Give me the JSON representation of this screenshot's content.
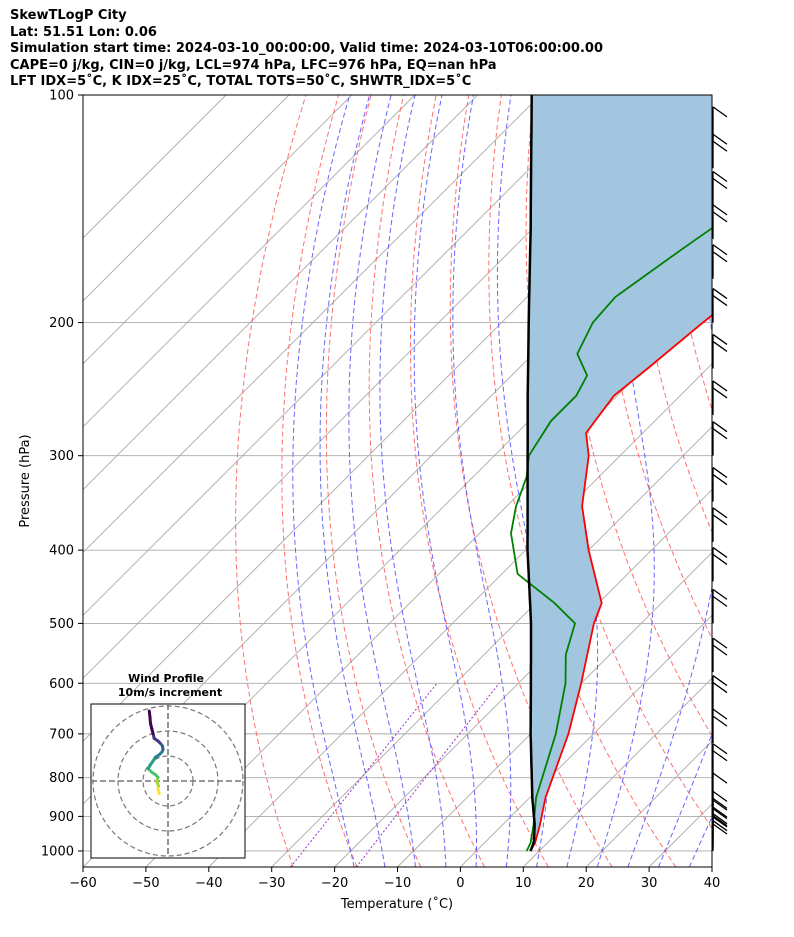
{
  "header": {
    "line1": "SkewTLogP City",
    "line2": "Lat: 51.51   Lon: 0.06",
    "line3": "Simulation start time: 2024-03-10_00:00:00, Valid time: 2024-03-10T06:00:00.00",
    "line4": "CAPE=0 j/kg, CIN=0 j/kg, LCL=974 hPa, LFC=976 hPa, EQ=nan hPa",
    "line5": "LFT IDX=5˚C, K IDX=25˚C, TOTAL TOTS=50˚C, SHWTR_IDX=5˚C"
  },
  "colors": {
    "temperature": "#ff0000",
    "dewpoint": "#008000",
    "parcel": "#000000",
    "shade": "#a3c6e0",
    "dry_adiabat": "#ff6060",
    "moist_adiabat": "#4b4bff",
    "mixing_ratio": "#9a32cd",
    "isotherm": "#aaaaaa"
  },
  "chart_data": {
    "type": "line",
    "xlabel": "Temperature (˚C)",
    "ylabel": "Pressure (hPa)",
    "xlim": [
      -60,
      40
    ],
    "ylim": [
      1050,
      100
    ],
    "y_scale": "log",
    "skew": true,
    "x_ticks": [
      "−60",
      "−50",
      "−40",
      "−30",
      "−20",
      "−10",
      "0",
      "10",
      "20",
      "30",
      "40"
    ],
    "y_ticks": [
      "100",
      "200",
      "300",
      "400",
      "500",
      "600",
      "700",
      "800",
      "900",
      "1000"
    ],
    "series": [
      {
        "key": "temperature",
        "pressure": [
          1000,
          975,
          925,
          850,
          700,
          600,
          500,
          470,
          400,
          350,
          300,
          280,
          250,
          230,
          200,
          185,
          165,
          150,
          130,
          115,
          100
        ],
        "values": [
          8.6,
          8.0,
          6.0,
          2.5,
          -4.0,
          -10.0,
          -17.5,
          -19.5,
          -30.0,
          -38.0,
          -45.0,
          -49.0,
          -50.5,
          -49.5,
          -48.0,
          -47.0,
          -46.5,
          -46.0,
          -45.0,
          -44.5,
          -44.0
        ]
      },
      {
        "key": "dewpoint",
        "pressure": [
          1000,
          975,
          925,
          850,
          700,
          600,
          550,
          500,
          470,
          430,
          380,
          350,
          320,
          300,
          270,
          250,
          235,
          220,
          200,
          185,
          160,
          140,
          120,
          100
        ],
        "values": [
          8.0,
          7.3,
          5.0,
          1.0,
          -6.0,
          -12.5,
          -17.0,
          -20.5,
          -27.0,
          -37.5,
          -45.0,
          -48.5,
          -51.5,
          -54.5,
          -56.5,
          -56.5,
          -58.0,
          -63.0,
          -65.5,
          -66.0,
          -63.0,
          -60.0,
          -57.0,
          -54.0
        ]
      },
      {
        "key": "parcel",
        "pressure": [
          1000,
          975,
          925,
          850,
          700,
          600,
          500,
          400,
          300,
          250,
          200,
          150,
          100
        ],
        "values": [
          8.6,
          7.8,
          5.2,
          0.4,
          -10.0,
          -18.0,
          -27.5,
          -39.7,
          -54.7,
          -64.2,
          -75.7,
          -90.4,
          -111.4
        ]
      }
    ],
    "wind_barbs": [
      {
        "p": 1000,
        "flags": [
          1,
          1
        ]
      },
      {
        "p": 990,
        "flags": [
          1,
          1
        ]
      },
      {
        "p": 975,
        "flags": [
          1,
          1
        ]
      },
      {
        "p": 950,
        "flags": [
          1,
          1
        ]
      },
      {
        "p": 925,
        "flags": [
          1,
          1
        ]
      },
      {
        "p": 875,
        "flags": [
          1
        ]
      },
      {
        "p": 800,
        "flags": [
          1,
          1
        ]
      },
      {
        "p": 720,
        "flags": [
          1,
          1
        ]
      },
      {
        "p": 650,
        "flags": [
          1,
          1
        ]
      },
      {
        "p": 580,
        "flags": [
          1,
          1
        ]
      },
      {
        "p": 500,
        "flags": [
          1,
          1
        ]
      },
      {
        "p": 440,
        "flags": [
          1,
          1
        ]
      },
      {
        "p": 390,
        "flags": [
          1,
          1
        ]
      },
      {
        "p": 345,
        "flags": [
          1,
          1
        ]
      },
      {
        "p": 300,
        "flags": [
          1,
          1
        ]
      },
      {
        "p": 265,
        "flags": [
          1,
          1
        ]
      },
      {
        "p": 230,
        "flags": [
          1,
          1
        ]
      },
      {
        "p": 200,
        "flags": [
          1,
          1
        ]
      },
      {
        "p": 175,
        "flags": [
          1,
          1
        ]
      },
      {
        "p": 155,
        "flags": [
          1,
          1
        ]
      },
      {
        "p": 140,
        "flags": [
          1,
          1
        ]
      },
      {
        "p": 125,
        "flags": [
          1,
          1
        ]
      },
      {
        "p": 115,
        "flags": [
          1
        ]
      }
    ],
    "inset": {
      "title_line1": "Wind Profile",
      "title_line2": "10m/s increment",
      "hodograph_u": [
        -3.5,
        -3.8,
        -4.0,
        -3.8,
        -4.2,
        -4.5,
        -4.0,
        -5.0,
        -6.5,
        -8.0,
        -7.0,
        -6.0,
        -5.0,
        -3.5,
        -2.5,
        -2.0,
        -2.2,
        -3.0,
        -3.5,
        -4.0,
        -5.5,
        -6.0,
        -6.5,
        -7.0,
        -7.2,
        -7.5
      ],
      "hodograph_v": [
        -5.0,
        -4.0,
        -3.0,
        -2.0,
        -1.0,
        0.0,
        1.5,
        2.5,
        3.5,
        5.0,
        6.5,
        8.0,
        9.5,
        10.5,
        11.5,
        12.5,
        14.0,
        15.0,
        15.5,
        16.0,
        17.0,
        19.0,
        21.0,
        23.0,
        25.5,
        28.0
      ]
    }
  }
}
